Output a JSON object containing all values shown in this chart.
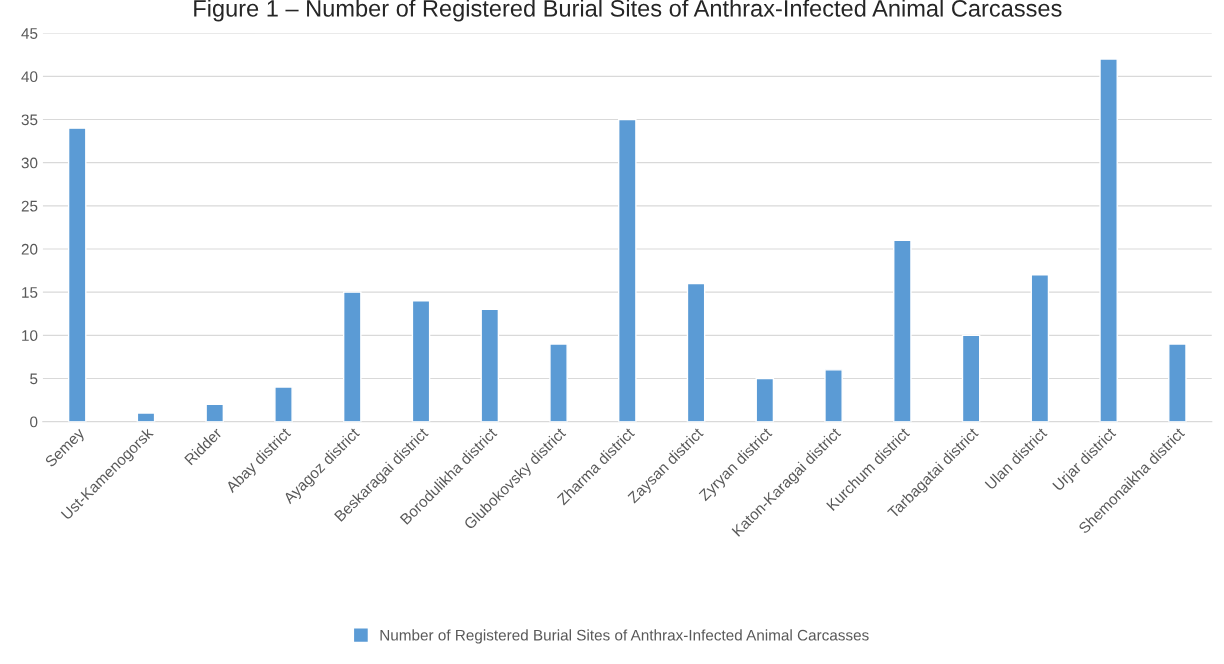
{
  "chart_data": {
    "type": "bar",
    "title": "Figure 1 – Number of Registered Burial Sites of Anthrax-Infected Animal Carcasses",
    "categories": [
      "Semey",
      "Ust-Kamenogorsk",
      "Ridder",
      "Abay district",
      "Ayagoz district",
      "Beskaragai district",
      "Borodulikha district",
      "Glubokovsky district",
      "Zharma district",
      "Zaysan district",
      "Zyryan district",
      "Katon-Karagai district",
      "Kurchum district",
      "Tarbagatai district",
      "Ulan district",
      "Urjar district",
      "Shemonaikha district"
    ],
    "series": [
      {
        "name": "Number of Registered Burial Sites of Anthrax-Infected Animal Carcasses",
        "color": "#5b9bd5",
        "values": [
          34,
          1,
          2,
          4,
          15,
          14,
          13,
          9,
          35,
          16,
          5,
          6,
          21,
          10,
          17,
          42,
          9
        ]
      }
    ],
    "ylim": [
      0,
      45
    ],
    "yticks": [
      0,
      5,
      10,
      15,
      20,
      25,
      30,
      35,
      40,
      45
    ],
    "grid": "y",
    "legend": "bottom"
  }
}
